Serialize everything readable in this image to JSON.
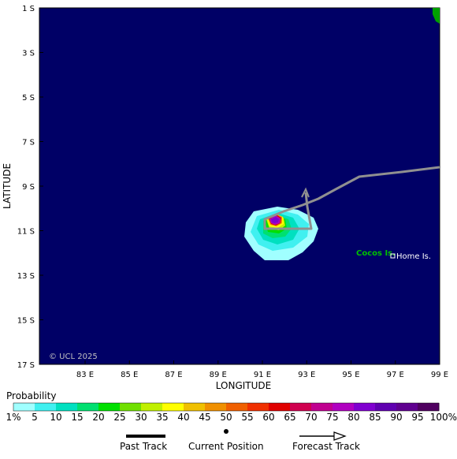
{
  "map": {
    "x_axis_title": "LONGITUDE",
    "y_axis_title": "LATITUDE",
    "copyright": "© UCL 2025",
    "lon_ticks": [
      "83 E",
      "85 E",
      "87 E",
      "89 E",
      "91 E",
      "93 E",
      "95 E",
      "97 E",
      "99 E"
    ],
    "lat_ticks": [
      "1 S",
      "3 S",
      "5 S",
      "7 S",
      "9 S",
      "11 S",
      "13 S",
      "15 S",
      "17 S"
    ],
    "place_labels": {
      "island_group": "Cocos Is.",
      "town": "Home Is."
    },
    "colors": {
      "ocean": "#000066",
      "land": "#00a000",
      "track": "#909090",
      "place_label": "#00c000"
    }
  },
  "legend": {
    "title": "Probability",
    "ticks": [
      "1%",
      "5",
      "10",
      "15",
      "20",
      "25",
      "30",
      "35",
      "40",
      "45",
      "50",
      "55",
      "60",
      "65",
      "70",
      "75",
      "80",
      "85",
      "90",
      "95",
      "100%"
    ],
    "colors": [
      "#a0ffff",
      "#40f0f0",
      "#00e0c0",
      "#00e070",
      "#00e000",
      "#70e000",
      "#c0f000",
      "#ffff00",
      "#f0c000",
      "#f09000",
      "#f06000",
      "#f03000",
      "#e00000",
      "#d00050",
      "#c00090",
      "#b000c0",
      "#8000d0",
      "#6000b0",
      "#600090",
      "#500060"
    ]
  },
  "track_key": {
    "past": "Past Track",
    "current": "Current Position",
    "forecast": "Forecast Track"
  }
}
